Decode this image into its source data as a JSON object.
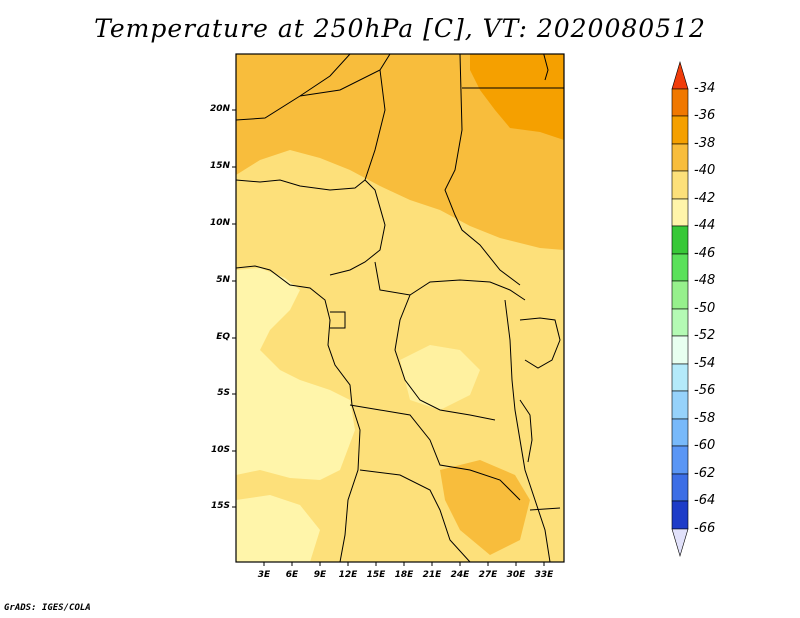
{
  "title": "Temperature at 250hPa [C], VT: 2020080512",
  "footer": "GrADS: IGES/COLA",
  "map": {
    "y_labels": [
      "20N",
      "15N",
      "10N",
      "5N",
      "EQ",
      "5S",
      "10S",
      "15S"
    ],
    "x_labels": [
      "3E",
      "6E",
      "9E",
      "12E",
      "15E",
      "18E",
      "21E",
      "24E",
      "27E",
      "30E",
      "33E"
    ]
  },
  "colorbar": {
    "labels": [
      "-34",
      "-36",
      "-38",
      "-40",
      "-42",
      "-44",
      "-46",
      "-48",
      "-50",
      "-52",
      "-54",
      "-56",
      "-58",
      "-60",
      "-62",
      "-64",
      "-66"
    ],
    "colors": [
      "#f03c0a",
      "#f07800",
      "#f5a000",
      "#f8bd3c",
      "#fde07a",
      "#fff5aa",
      "#37c837",
      "#5ae15a",
      "#96f08c",
      "#b4fab4",
      "#e8fff0",
      "#b4eafa",
      "#96d2fa",
      "#78b9fa",
      "#5a96f5",
      "#3c6ee6",
      "#1e3cc8",
      "#0a1e78",
      "#e1e1fa"
    ]
  }
}
